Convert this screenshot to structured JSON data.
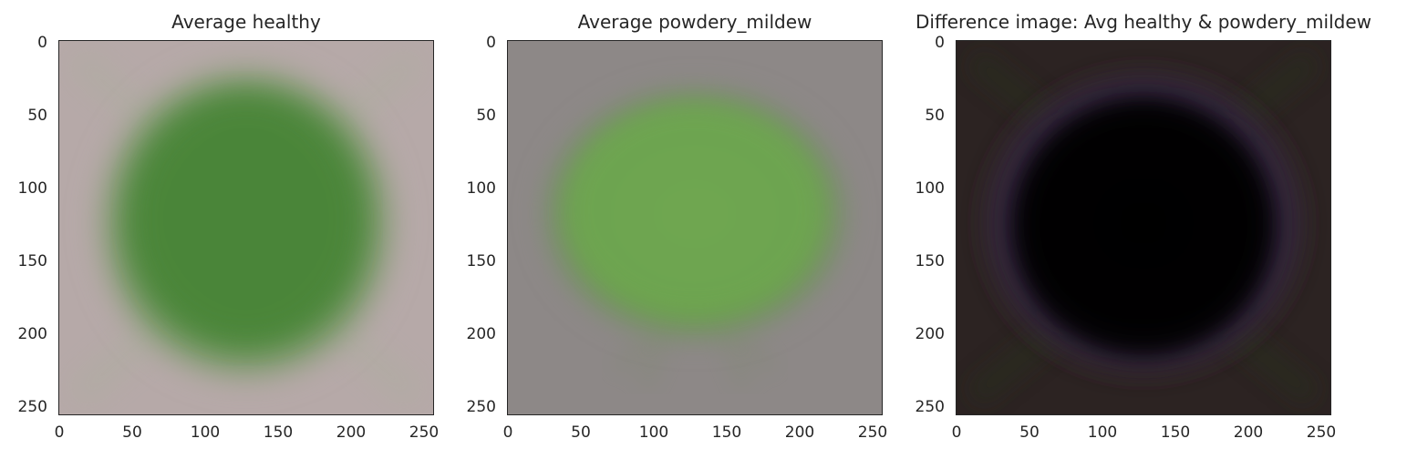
{
  "panels": [
    {
      "title": "Average healthy",
      "y_ticks": [
        "0",
        "50",
        "100",
        "150",
        "200",
        "250"
      ],
      "x_ticks": [
        "0",
        "50",
        "100",
        "150",
        "200",
        "250"
      ],
      "colors": {
        "background": "#b6a9a8",
        "leaf": "#4f8a3e",
        "edge": "#8fa07f"
      }
    },
    {
      "title": "Average powdery_mildew",
      "y_ticks": [
        "0",
        "50",
        "100",
        "150",
        "200",
        "250"
      ],
      "x_ticks": [
        "0",
        "50",
        "100",
        "150",
        "200",
        "250"
      ],
      "colors": {
        "background": "#8d8887",
        "leaf": "#6fa54f",
        "edge": "#7e8c72"
      }
    },
    {
      "title": "Difference image: Avg healthy & powdery_mildew",
      "y_ticks": [
        "0",
        "50",
        "100",
        "150",
        "200",
        "250"
      ],
      "x_ticks": [
        "0",
        "50",
        "100",
        "150",
        "200",
        "250"
      ],
      "colors": {
        "background": "#2c2322",
        "leaf": "#030104",
        "edge": "#3a2a46"
      }
    }
  ]
}
